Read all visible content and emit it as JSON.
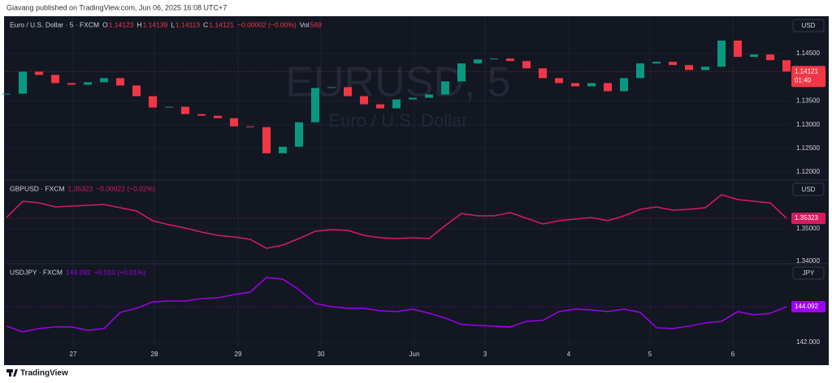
{
  "header": "Giavang published on TradingView.com, Jun 06, 2025 16:08 UTC+7",
  "footer": "TradingView",
  "chart_data": [
    {
      "type": "candle",
      "title": "Euro / U.S. Dollar · 5 · FXCM",
      "ohlc": [
        {
          "label": "O",
          "value": "1.14123"
        },
        {
          "label": "H",
          "value": "1.14139"
        },
        {
          "label": "L",
          "value": "1.14113"
        },
        {
          "label": "C",
          "value": "1.14121"
        }
      ],
      "change": "−0.00002 (−0.00%)",
      "volume": {
        "label": "Vol",
        "value": 569
      },
      "watermark": "EURUSD, 5",
      "watermark_subtitle": "Euro / U.S. Dollar",
      "currency": "USD",
      "countdown": "01:40",
      "up_color": "#089981",
      "down_color": "#f23645",
      "color": "#f23645",
      "values": [
        1.13655,
        1.14121,
        1.14052,
        1.13879,
        1.13845,
        1.13897,
        1.13983,
        1.13828,
        1.13603,
        1.13362,
        1.13379,
        1.13224,
        1.1319,
        1.13138,
        1.12966,
        1.12948,
        1.12397,
        1.12535,
        1.13052,
        1.13776,
        1.13793,
        1.13603,
        1.13431,
        1.13345,
        1.13534,
        1.13569,
        1.13638,
        1.13914,
        1.14293,
        1.14379,
        1.14397,
        1.14345,
        1.1419,
        1.13983,
        1.13879,
        1.1381,
        1.13879,
        1.13707,
        1.13983,
        1.14293,
        1.14328,
        1.14259,
        1.14155,
        1.14224,
        1.14776,
        1.14431,
        1.14483,
        1.14362,
        1.14121
      ],
      "ylim": [
        1.1183,
        1.1529
      ],
      "yticks": [
        {
          "value": 1.12,
          "label": "1.12000"
        },
        {
          "value": 1.125,
          "label": "1.12500"
        },
        {
          "value": 1.13,
          "label": "1.13000"
        },
        {
          "value": 1.135,
          "label": "1.13500"
        },
        {
          "value": 1.145,
          "label": "1.14500"
        }
      ],
      "grid": true
    },
    {
      "type": "line",
      "title": "GBPUSD · FXCM",
      "change": "−0.00022 (−0.02%)",
      "currency": "USD",
      "color": "#d81b60",
      "values": [
        1.3535,
        1.3585,
        1.358,
        1.35675,
        1.357,
        1.35725,
        1.3575,
        1.3565,
        1.3555,
        1.3525,
        1.35125,
        1.35025,
        1.349,
        1.348,
        1.3475,
        1.34675,
        1.344,
        1.345,
        1.347,
        1.34925,
        1.34975,
        1.3495,
        1.348,
        1.34725,
        1.347,
        1.34725,
        1.347,
        1.351,
        1.35475,
        1.354,
        1.354,
        1.355,
        1.35325,
        1.3515,
        1.3525,
        1.353,
        1.3535,
        1.3525,
        1.354,
        1.356,
        1.35675,
        1.35575,
        1.356,
        1.3565,
        1.3605,
        1.359,
        1.3585,
        1.358,
        1.35323
      ],
      "ylim": [
        1.33925,
        1.365
      ],
      "yticks": [
        {
          "value": 1.34,
          "label": "1.34000"
        },
        {
          "value": 1.35,
          "label": "1.35000"
        }
      ],
      "grid": true
    },
    {
      "type": "line",
      "title": "USDJPY · FXCM",
      "change": "+0.010 (+0.01%)",
      "currency": "JPY",
      "color": "#a000f0",
      "values": [
        142.952,
        142.619,
        142.81,
        142.905,
        142.905,
        142.714,
        142.81,
        143.762,
        144.0,
        144.381,
        144.429,
        144.429,
        144.571,
        144.619,
        144.81,
        144.952,
        145.81,
        145.714,
        145.095,
        144.286,
        144.095,
        144.0,
        144.0,
        143.857,
        143.81,
        143.952,
        143.714,
        143.429,
        143.048,
        143.0,
        142.952,
        142.905,
        143.238,
        143.286,
        143.81,
        143.952,
        143.905,
        143.81,
        143.952,
        143.762,
        142.857,
        142.81,
        142.952,
        143.143,
        143.238,
        143.81,
        143.619,
        143.714,
        144.092
      ],
      "ylim": [
        141.71,
        146.62
      ],
      "yticks": [
        {
          "value": 142,
          "label": "142.000"
        }
      ],
      "xticks": [
        {
          "value": 4.1,
          "label": "27"
        },
        {
          "value": 9.1,
          "label": "28"
        },
        {
          "value": 14.25,
          "label": "29"
        },
        {
          "value": 19.35,
          "label": "30"
        },
        {
          "value": 25.1,
          "label": "Jun"
        },
        {
          "value": 29.45,
          "label": "3"
        },
        {
          "value": 34.6,
          "label": "4"
        },
        {
          "value": 39.6,
          "label": "5"
        },
        {
          "value": 44.7,
          "label": "6"
        }
      ],
      "grid": true
    }
  ]
}
